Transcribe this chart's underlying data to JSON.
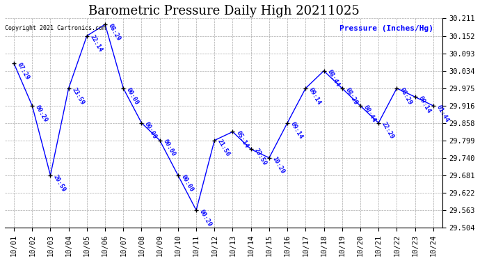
{
  "title": "Barometric Pressure Daily High 20211025",
  "ylabel": "Pressure (Inches/Hg)",
  "copyright": "Copyright 2021 Cartronics.com",
  "line_color": "blue",
  "marker_color": "black",
  "background_color": "#ffffff",
  "plot_bg_color": "#ffffff",
  "grid_color": "#aaaaaa",
  "dates": [
    "10/01",
    "10/02",
    "10/03",
    "10/04",
    "10/05",
    "10/06",
    "10/07",
    "10/08",
    "10/09",
    "10/10",
    "10/11",
    "10/12",
    "10/13",
    "10/14",
    "10/15",
    "10/16",
    "10/17",
    "10/18",
    "10/19",
    "10/20",
    "10/21",
    "10/22",
    "10/23",
    "10/24"
  ],
  "x_indices": [
    0,
    1,
    2,
    3,
    4,
    5,
    6,
    7,
    8,
    9,
    10,
    11,
    12,
    13,
    14,
    15,
    16,
    17,
    18,
    19,
    20,
    21,
    22,
    23
  ],
  "values": [
    30.059,
    29.916,
    29.681,
    29.975,
    30.152,
    30.191,
    29.975,
    29.858,
    29.799,
    29.681,
    29.563,
    29.799,
    29.828,
    29.769,
    29.74,
    29.858,
    29.975,
    30.034,
    29.975,
    29.916,
    29.858,
    29.975,
    29.946,
    29.916
  ],
  "annotations": [
    "07:29",
    "00:29",
    "20:59",
    "23:59",
    "22:14",
    "08:29",
    "00:00",
    "00:00",
    "00:00",
    "00:00",
    "00:29",
    "21:56",
    "05:14",
    "23:59",
    "10:29",
    "09:14",
    "09:14",
    "08:44",
    "08:29",
    "08:44",
    "22:29",
    "08:29",
    "09:14",
    "01:44"
  ],
  "ylim_min": 29.504,
  "ylim_max": 30.211,
  "yticks": [
    29.504,
    29.563,
    29.622,
    29.681,
    29.74,
    29.799,
    29.858,
    29.916,
    29.975,
    30.034,
    30.093,
    30.152,
    30.211
  ],
  "title_fontsize": 13,
  "label_fontsize": 8,
  "tick_fontsize": 7.5,
  "annot_fontsize": 6.5,
  "fig_width": 6.9,
  "fig_height": 3.75,
  "dpi": 100
}
